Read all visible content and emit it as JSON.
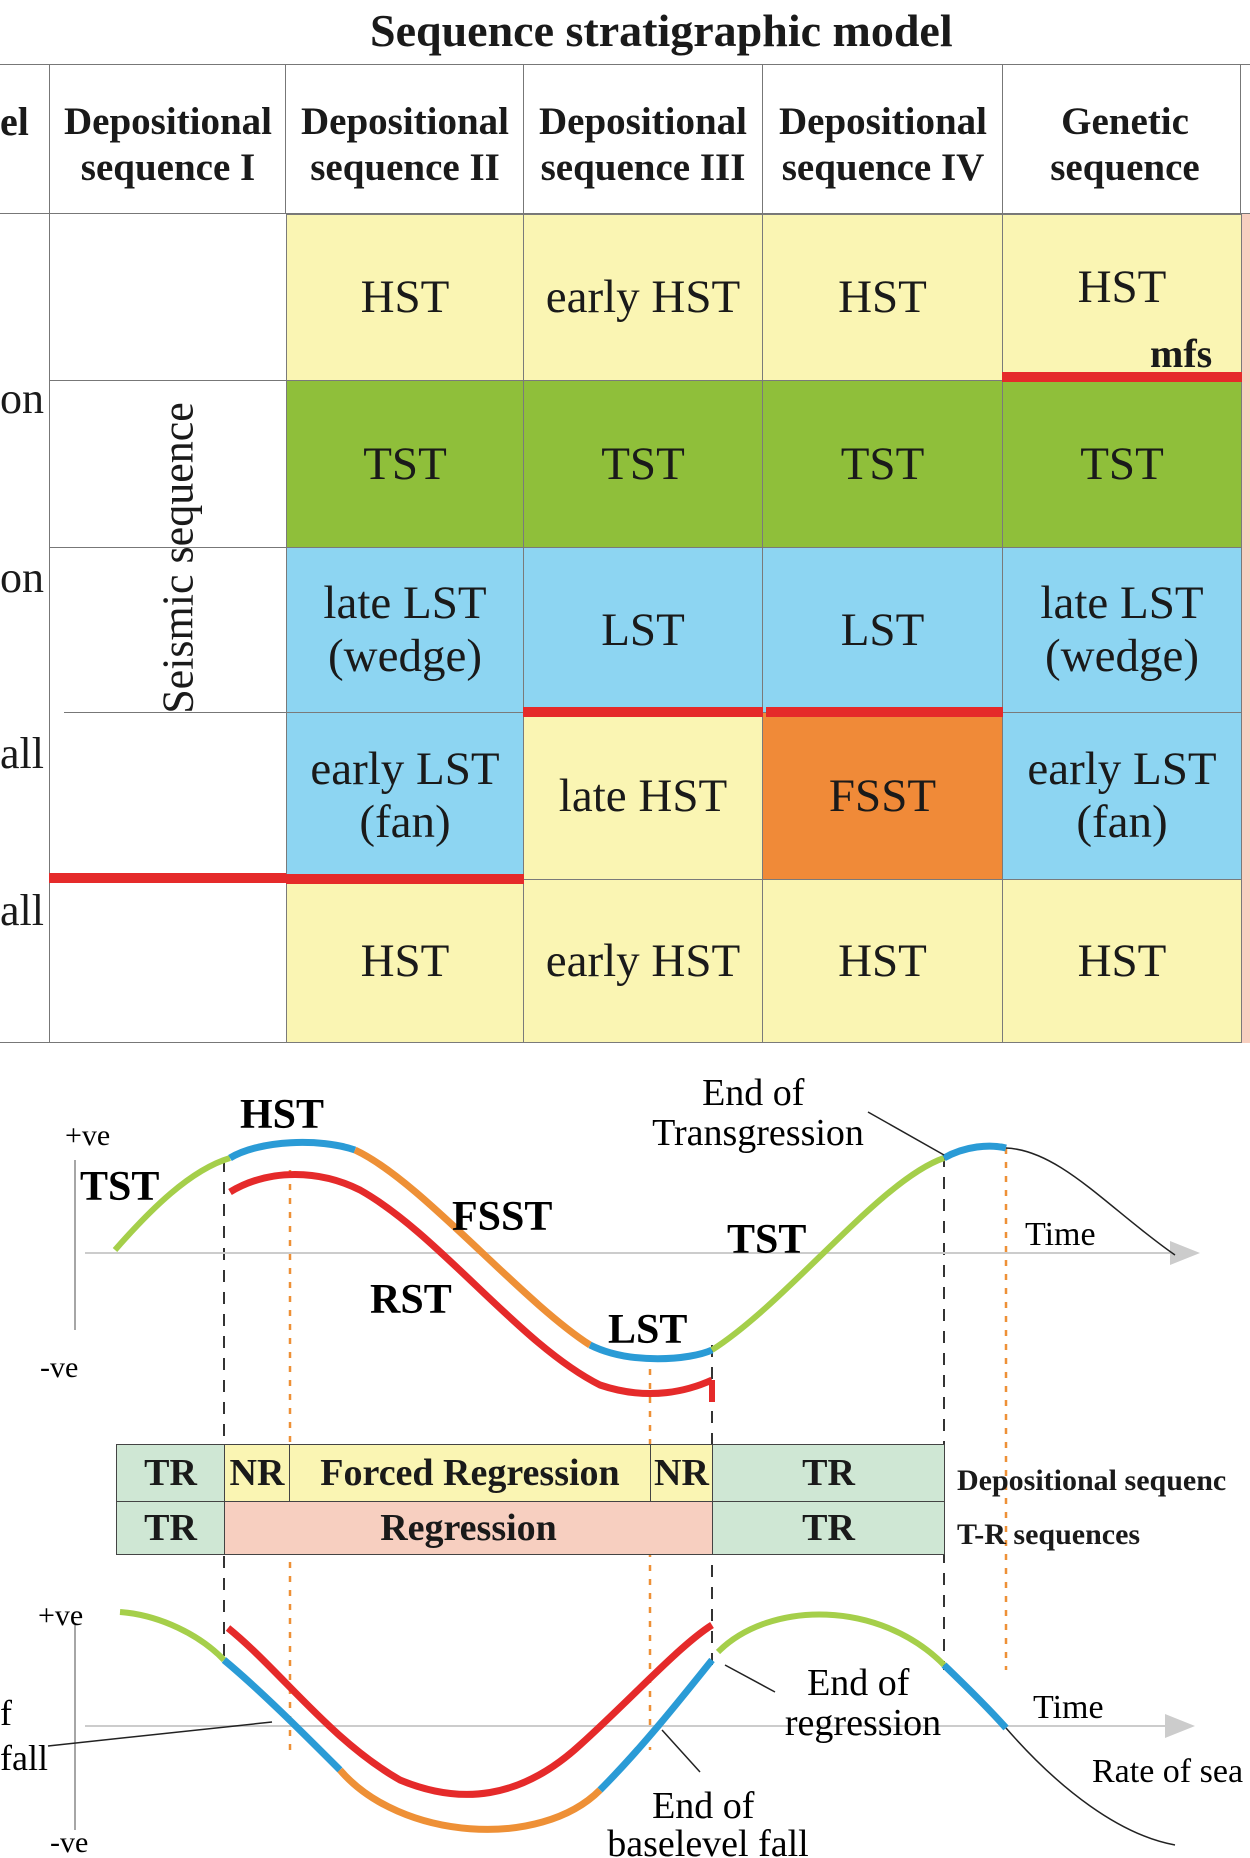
{
  "title": "Sequence stratigraphic model",
  "clipped_left_labels": [
    "el",
    "on",
    "on",
    "all",
    "all"
  ],
  "columns": [
    "Depositional\nsequence I",
    "Depositional\nsequence II",
    "Depositional\nsequence III",
    "Depositional\nsequence IV",
    "Genetic\nsequence"
  ],
  "seismic_label": "Seismic sequence",
  "cells": {
    "r1": [
      "HST",
      "early HST",
      "HST",
      "HST"
    ],
    "r2": [
      "TST",
      "TST",
      "TST",
      "TST"
    ],
    "r3": [
      "late LST\n(wedge)",
      "LST",
      "LST",
      "late LST\n(wedge)"
    ],
    "r4": [
      "early LST\n(fan)",
      "late HST",
      "FSST",
      "early LST\n(fan)"
    ],
    "r5": [
      "HST",
      "early HST",
      "HST",
      "HST"
    ]
  },
  "mfs_label": "mfs",
  "colors": {
    "yellow": "#faf5b3",
    "green": "#8fbf3a",
    "blue": "#8dd5f2",
    "orange": "#f08a38",
    "red": "#e52a2a",
    "tr_green": "#cfe7d4",
    "regression_pink": "#f7cfc0",
    "curve_green": "#a5cf4a",
    "curve_blue": "#2a9bd6",
    "curve_orange": "#ee9036"
  },
  "curve1": {
    "pos_label": "+ve",
    "neg_label": "-ve",
    "time_label": "Time",
    "labels": [
      "TST",
      "HST",
      "FSST",
      "RST",
      "LST",
      "TST"
    ],
    "annotation": "End of\nTransgression"
  },
  "bands": {
    "row1": [
      "TR",
      "NR",
      "Forced Regression",
      "NR",
      "TR"
    ],
    "row2": [
      "TR",
      "Regression",
      "TR"
    ],
    "row1_label": "Depositional sequenc",
    "row2_label": "T-R sequences"
  },
  "curve2": {
    "pos_label": "+ve",
    "neg_label": "-ve",
    "time_label": "Time",
    "rate_label": "Rate of sea",
    "left_label_1": "f",
    "left_label_2": "fall",
    "annotation_1": "End of\nregression",
    "annotation_2": "End of\nbaselevel fall"
  }
}
